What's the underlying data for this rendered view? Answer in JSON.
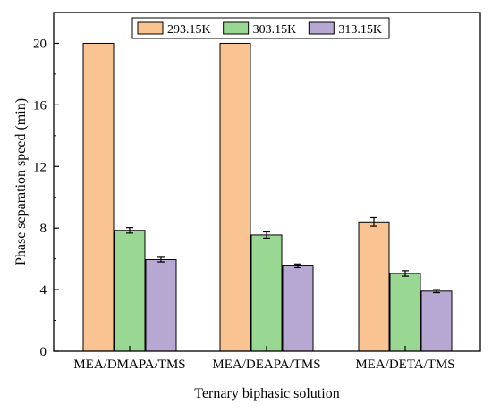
{
  "chart_data": {
    "type": "bar",
    "title": "",
    "xlabel": "Ternary biphasic solution",
    "ylabel": "Phase separation speed (min)",
    "ylim": [
      0,
      22
    ],
    "yticks": [
      "0",
      "4",
      "8",
      "12",
      "16",
      "20"
    ],
    "grid": false,
    "legend_position": "top-center",
    "categories": [
      "MEA/DMAPA/TMS",
      "MEA/DEAPA/TMS",
      "MEA/DETA/TMS"
    ],
    "series": [
      {
        "name": "293.15K",
        "color": "#f9c491",
        "values": [
          20.0,
          20.0,
          8.4
        ],
        "errors": [
          0,
          0,
          0.28
        ]
      },
      {
        "name": "303.15K",
        "color": "#99d893",
        "values": [
          7.85,
          7.55,
          5.05
        ],
        "errors": [
          0.18,
          0.2,
          0.18
        ]
      },
      {
        "name": "313.15K",
        "color": "#b7a7d3",
        "values": [
          5.95,
          5.55,
          3.9
        ],
        "errors": [
          0.15,
          0.12,
          0.1
        ]
      }
    ]
  }
}
